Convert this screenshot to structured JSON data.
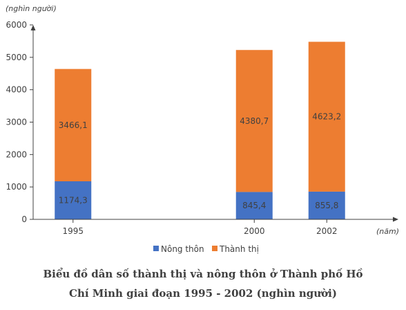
{
  "chart_data": {
    "type": "bar",
    "stacked": true,
    "categories": [
      "1995",
      "2000",
      "2002"
    ],
    "x_positions": [
      1995,
      2000,
      2002
    ],
    "series": [
      {
        "name": "Nông thôn",
        "color": "#4472C4",
        "values": [
          1174.3,
          845.4,
          855.8
        ],
        "labels": [
          "1174,3",
          "845,4",
          "855,8"
        ]
      },
      {
        "name": "Thành thị",
        "color": "#ED7D31",
        "values": [
          3466.1,
          4380.7,
          4623.2
        ],
        "labels": [
          "3466,1",
          "4380,7",
          "4623,2"
        ]
      }
    ],
    "y_unit": "(nghìn người)",
    "x_unit": "(năm)",
    "ylim": [
      0,
      6000
    ],
    "y_ticks": [
      0,
      1000,
      2000,
      3000,
      4000,
      5000,
      6000
    ],
    "grid": false,
    "legend_position": "bottom"
  },
  "caption": {
    "line1": "Biểu đồ dân số thành thị và nông thôn ở Thành phố Hồ",
    "line2": "Chí Minh giai đoạn 1995 - 2002 (nghìn người)"
  }
}
